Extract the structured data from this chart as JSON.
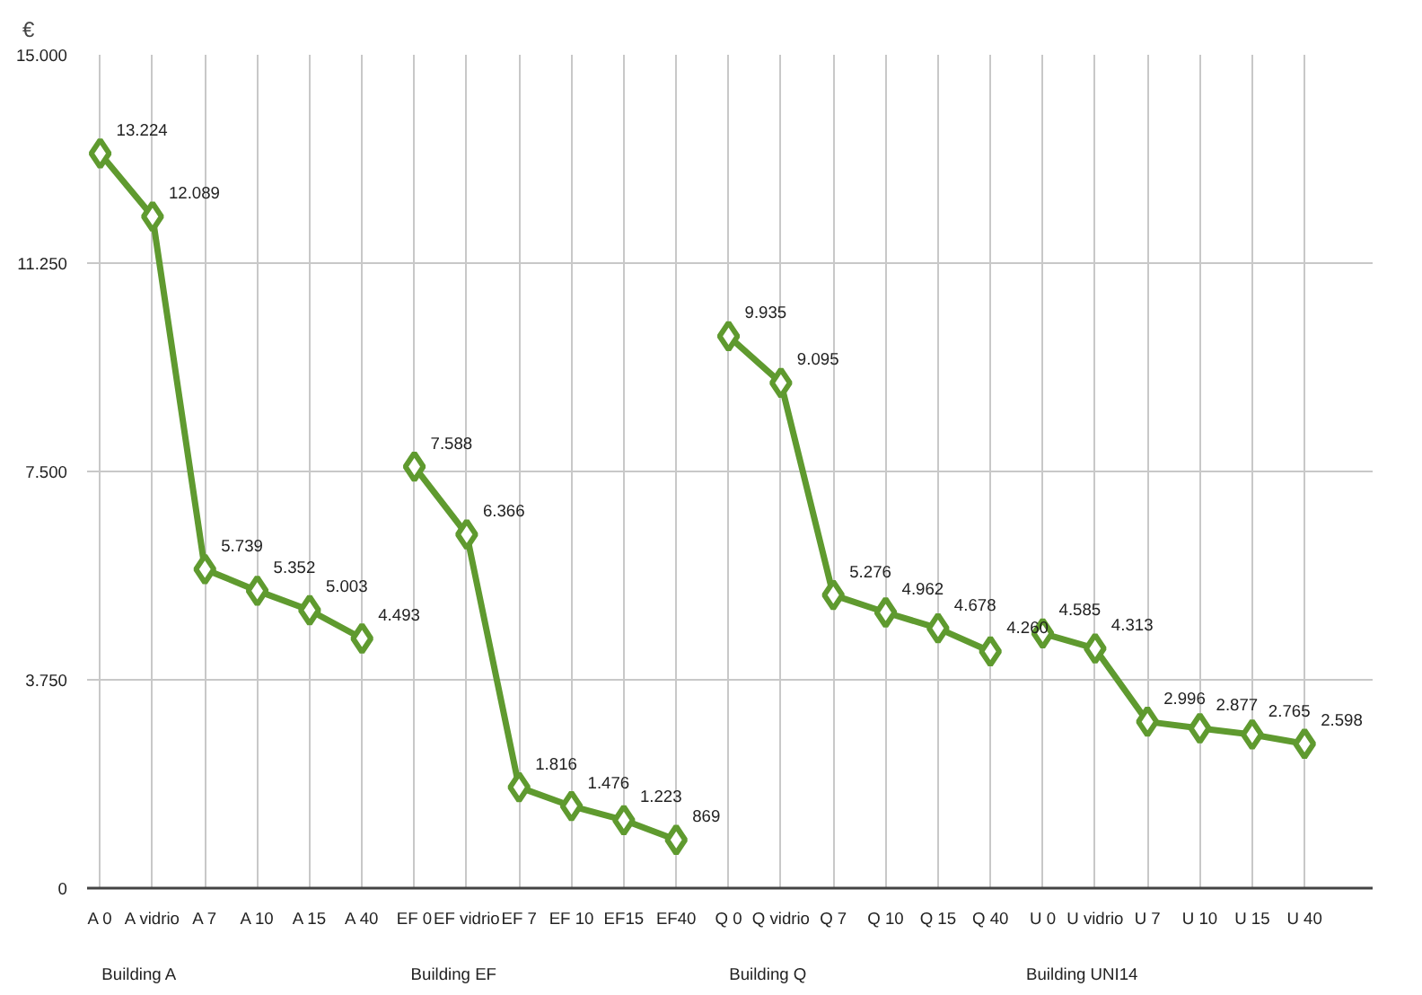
{
  "chart_data": {
    "type": "line",
    "ylabel": "€",
    "categories": [
      "A 0",
      "A vidrio",
      "A 7",
      "A 10",
      "A 15",
      "A 40",
      "EF 0",
      "EF vidrio",
      "EF 7",
      "EF 10",
      "EF15",
      "EF40",
      "Q 0",
      "Q vidrio",
      "Q 7",
      "Q 10",
      "Q 15",
      "Q 40",
      "U 0",
      "U vidrio",
      "U 7",
      "U 10",
      "U 15",
      "U 40"
    ],
    "series": [
      {
        "color": "#5f9a2f",
        "values": [
          13224,
          12089,
          5739,
          5352,
          5003,
          4493,
          null,
          null,
          null,
          null,
          null,
          null,
          null,
          null,
          null,
          null,
          null,
          null,
          null,
          null,
          null,
          null,
          null,
          null
        ],
        "value_labels": [
          "13.224",
          "12.089",
          "5.739",
          "5.352",
          "5.003",
          "4.493",
          null,
          null,
          null,
          null,
          null,
          null,
          null,
          null,
          null,
          null,
          null,
          null,
          null,
          null,
          null,
          null,
          null,
          null
        ]
      },
      {
        "color": "#5f9a2f",
        "values": [
          null,
          null,
          null,
          null,
          null,
          null,
          7588,
          6366,
          1816,
          1476,
          1223,
          869,
          null,
          null,
          null,
          null,
          null,
          null,
          null,
          null,
          null,
          null,
          null,
          null
        ],
        "value_labels": [
          null,
          null,
          null,
          null,
          null,
          null,
          "7.588",
          "6.366",
          "1.816",
          "1.476",
          "1.223",
          "869",
          null,
          null,
          null,
          null,
          null,
          null,
          null,
          null,
          null,
          null,
          null,
          null
        ]
      },
      {
        "color": "#5f9a2f",
        "values": [
          null,
          null,
          null,
          null,
          null,
          null,
          null,
          null,
          null,
          null,
          null,
          null,
          9935,
          9095,
          5276,
          4962,
          4678,
          4260,
          null,
          null,
          null,
          null,
          null,
          null
        ],
        "value_labels": [
          null,
          null,
          null,
          null,
          null,
          null,
          null,
          null,
          null,
          null,
          null,
          null,
          "9.935",
          "9.095",
          "5.276",
          "4.962",
          "4.678",
          "4.260",
          null,
          null,
          null,
          null,
          null,
          null
        ]
      },
      {
        "color": "#5f9a2f",
        "values": [
          null,
          null,
          null,
          null,
          null,
          null,
          null,
          null,
          null,
          null,
          null,
          null,
          null,
          null,
          null,
          null,
          null,
          null,
          4585,
          4313,
          2996,
          2877,
          2765,
          2598
        ],
        "value_labels": [
          null,
          null,
          null,
          null,
          null,
          null,
          null,
          null,
          null,
          null,
          null,
          null,
          null,
          null,
          null,
          null,
          null,
          null,
          "4.585",
          "4.313",
          "2.996",
          "2.877",
          "2.765",
          "2.598"
        ]
      }
    ],
    "annotations": [
      "Building A",
      "Building EF",
      "Building Q",
      "Building UNI14"
    ],
    "ylim": [
      0,
      15000
    ],
    "yticks": [
      {
        "value": 0,
        "label": "0"
      },
      {
        "value": 3750,
        "label": "3.750"
      },
      {
        "value": 7500,
        "label": "7.500"
      },
      {
        "value": 11250,
        "label": "11.250"
      },
      {
        "value": 15000,
        "label": "15.000"
      }
    ],
    "grid": true,
    "marker": "diamond",
    "line_style": "solid"
  }
}
